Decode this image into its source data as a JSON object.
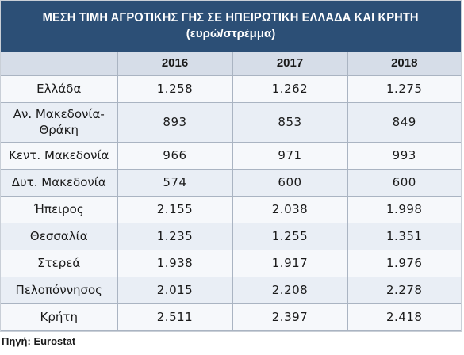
{
  "title": "ΜΕΣΗ ΤΙΜΗ ΑΓΡΟΤΙΚΗΣ ΓΗΣ ΣΕ ΗΠΕΙΡΩΤΙΚΗ ΕΛΛΑΔΑ ΚΑΙ ΚΡΗΤΗ",
  "subtitle": "(ευρώ/στρέμμα)",
  "table": {
    "columns": [
      "",
      "2016",
      "2017",
      "2018"
    ],
    "rows": [
      {
        "region": "Ελλάδα",
        "values": [
          "1.258",
          "1.262",
          "1.275"
        ]
      },
      {
        "region": "Αν. Μακεδονία-Θράκη",
        "values": [
          "893",
          "853",
          "849"
        ]
      },
      {
        "region": "Κεντ. Μακεδονία",
        "values": [
          "966",
          "971",
          "993"
        ]
      },
      {
        "region": "Δυτ. Μακεδονία",
        "values": [
          "574",
          "600",
          "600"
        ]
      },
      {
        "region": "Ήπειρος",
        "values": [
          "2.155",
          "2.038",
          "1.998"
        ]
      },
      {
        "region": "Θεσσαλία",
        "values": [
          "1.235",
          "1.255",
          "1.351"
        ]
      },
      {
        "region": "Στερεά",
        "values": [
          "1.938",
          "1.917",
          "1.976"
        ]
      },
      {
        "region": "Πελοπόννησος",
        "values": [
          "2.015",
          "2.208",
          "2.278"
        ]
      },
      {
        "region": "Κρήτη",
        "values": [
          "2.511",
          "2.397",
          "2.418"
        ]
      }
    ]
  },
  "source": "Πηγή: Eurostat",
  "colors": {
    "header_bg": "#2c4f76",
    "column_header_bg": "#d6dde8",
    "row_odd_bg": "#f6f8fb",
    "row_even_bg": "#e9eef5"
  }
}
